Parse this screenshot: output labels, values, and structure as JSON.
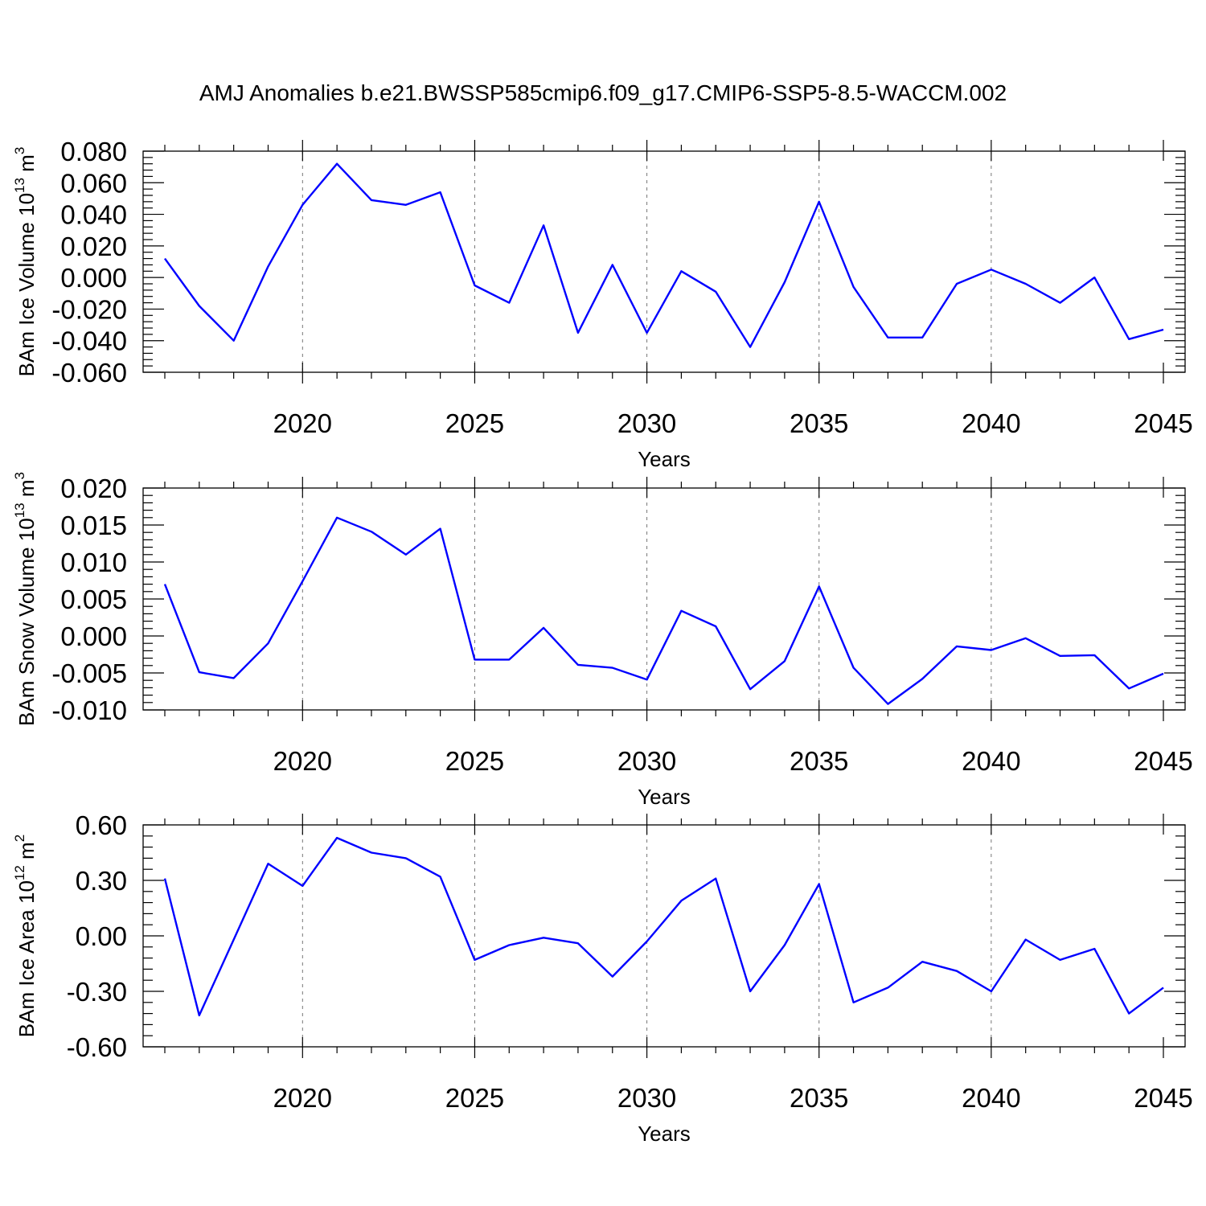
{
  "figure": {
    "title": "AMJ Anomalies b.e21.BWSSP585cmip6.f09_g17.CMIP6-SSP5-8.5-WACCM.002"
  },
  "colors": {
    "line": "#0000ff",
    "axis": "#000000",
    "grid": "#777777"
  },
  "chart_data": [
    {
      "type": "line",
      "xlabel": "Years",
      "ylabel": {
        "text": "BAm Ice Volume 10",
        "exponent": "13",
        "unit": "m",
        "unit_exponent": "3"
      },
      "xlim": [
        2016,
        2045
      ],
      "ylim": [
        -0.06,
        0.08
      ],
      "xticks": [
        2020,
        2025,
        2030,
        2035,
        2040,
        2045
      ],
      "xtick_labels": [
        "2020",
        "2025",
        "2030",
        "2035",
        "2040",
        "2045"
      ],
      "yticks": [
        -0.06,
        -0.04,
        -0.02,
        0.0,
        0.02,
        0.04,
        0.06,
        0.08
      ],
      "ytick_labels": [
        "-0.060",
        "-0.040",
        "-0.020",
        "0.000",
        "0.020",
        "0.040",
        "0.060",
        "0.080"
      ],
      "grid": "vertical dashed at major x ticks",
      "x": [
        2016,
        2017,
        2018,
        2019,
        2020,
        2021,
        2022,
        2023,
        2024,
        2025,
        2026,
        2027,
        2028,
        2029,
        2030,
        2031,
        2032,
        2033,
        2034,
        2035,
        2036,
        2037,
        2038,
        2039,
        2040,
        2041,
        2042,
        2043,
        2044,
        2045
      ],
      "values": [
        0.012,
        -0.018,
        -0.04,
        0.007,
        0.046,
        0.072,
        0.049,
        0.046,
        0.054,
        -0.005,
        -0.016,
        0.033,
        -0.035,
        0.008,
        -0.035,
        0.004,
        -0.009,
        -0.044,
        -0.003,
        0.048,
        -0.006,
        -0.038,
        -0.038,
        -0.004,
        0.005,
        -0.004,
        -0.016,
        0.0,
        -0.039,
        -0.033
      ]
    },
    {
      "type": "line",
      "xlabel": "Years",
      "ylabel": {
        "text": "BAm Snow Volume 10",
        "exponent": "13",
        "unit": "m",
        "unit_exponent": "3"
      },
      "xlim": [
        2016,
        2045
      ],
      "ylim": [
        -0.01,
        0.02
      ],
      "xticks": [
        2020,
        2025,
        2030,
        2035,
        2040,
        2045
      ],
      "xtick_labels": [
        "2020",
        "2025",
        "2030",
        "2035",
        "2040",
        "2045"
      ],
      "yticks": [
        -0.01,
        -0.005,
        0.0,
        0.005,
        0.01,
        0.015,
        0.02
      ],
      "ytick_labels": [
        "-0.010",
        "-0.005",
        "0.000",
        "0.005",
        "0.010",
        "0.015",
        "0.020"
      ],
      "grid": "vertical dashed at major x ticks",
      "x": [
        2016,
        2017,
        2018,
        2019,
        2020,
        2021,
        2022,
        2023,
        2024,
        2025,
        2026,
        2027,
        2028,
        2029,
        2030,
        2031,
        2032,
        2033,
        2034,
        2035,
        2036,
        2037,
        2038,
        2039,
        2040,
        2041,
        2042,
        2043,
        2044,
        2045
      ],
      "values": [
        0.007,
        -0.0049,
        -0.0057,
        -0.001,
        0.0074,
        0.016,
        0.0141,
        0.011,
        0.0145,
        -0.0032,
        -0.0032,
        0.0011,
        -0.0039,
        -0.0043,
        -0.0059,
        0.0034,
        0.0013,
        -0.0072,
        -0.0034,
        0.0067,
        -0.0043,
        -0.0092,
        -0.0058,
        -0.0014,
        -0.0019,
        -0.0003,
        -0.0027,
        -0.0026,
        -0.0071,
        -0.0051
      ]
    },
    {
      "type": "line",
      "xlabel": "Years",
      "ylabel": {
        "text": "BAm Ice Area 10",
        "exponent": "12",
        "unit": "m",
        "unit_exponent": "2"
      },
      "xlim": [
        2016,
        2045
      ],
      "ylim": [
        -0.6,
        0.6
      ],
      "xticks": [
        2020,
        2025,
        2030,
        2035,
        2040,
        2045
      ],
      "xtick_labels": [
        "2020",
        "2025",
        "2030",
        "2035",
        "2040",
        "2045"
      ],
      "yticks": [
        -0.6,
        -0.3,
        0.0,
        0.3,
        0.6
      ],
      "ytick_labels": [
        "-0.60",
        "-0.30",
        "0.00",
        "0.30",
        "0.60"
      ],
      "grid": "vertical dashed at major x ticks",
      "x": [
        2016,
        2017,
        2018,
        2019,
        2020,
        2021,
        2022,
        2023,
        2024,
        2025,
        2026,
        2027,
        2028,
        2029,
        2030,
        2031,
        2032,
        2033,
        2034,
        2035,
        2036,
        2037,
        2038,
        2039,
        2040,
        2041,
        2042,
        2043,
        2044,
        2045
      ],
      "values": [
        0.31,
        -0.43,
        -0.02,
        0.39,
        0.27,
        0.53,
        0.45,
        0.42,
        0.32,
        -0.13,
        -0.05,
        -0.01,
        -0.04,
        -0.22,
        -0.03,
        0.19,
        0.31,
        -0.3,
        -0.05,
        0.28,
        -0.36,
        -0.28,
        -0.14,
        -0.19,
        -0.3,
        -0.02,
        -0.13,
        -0.07,
        -0.42,
        -0.28
      ]
    }
  ]
}
